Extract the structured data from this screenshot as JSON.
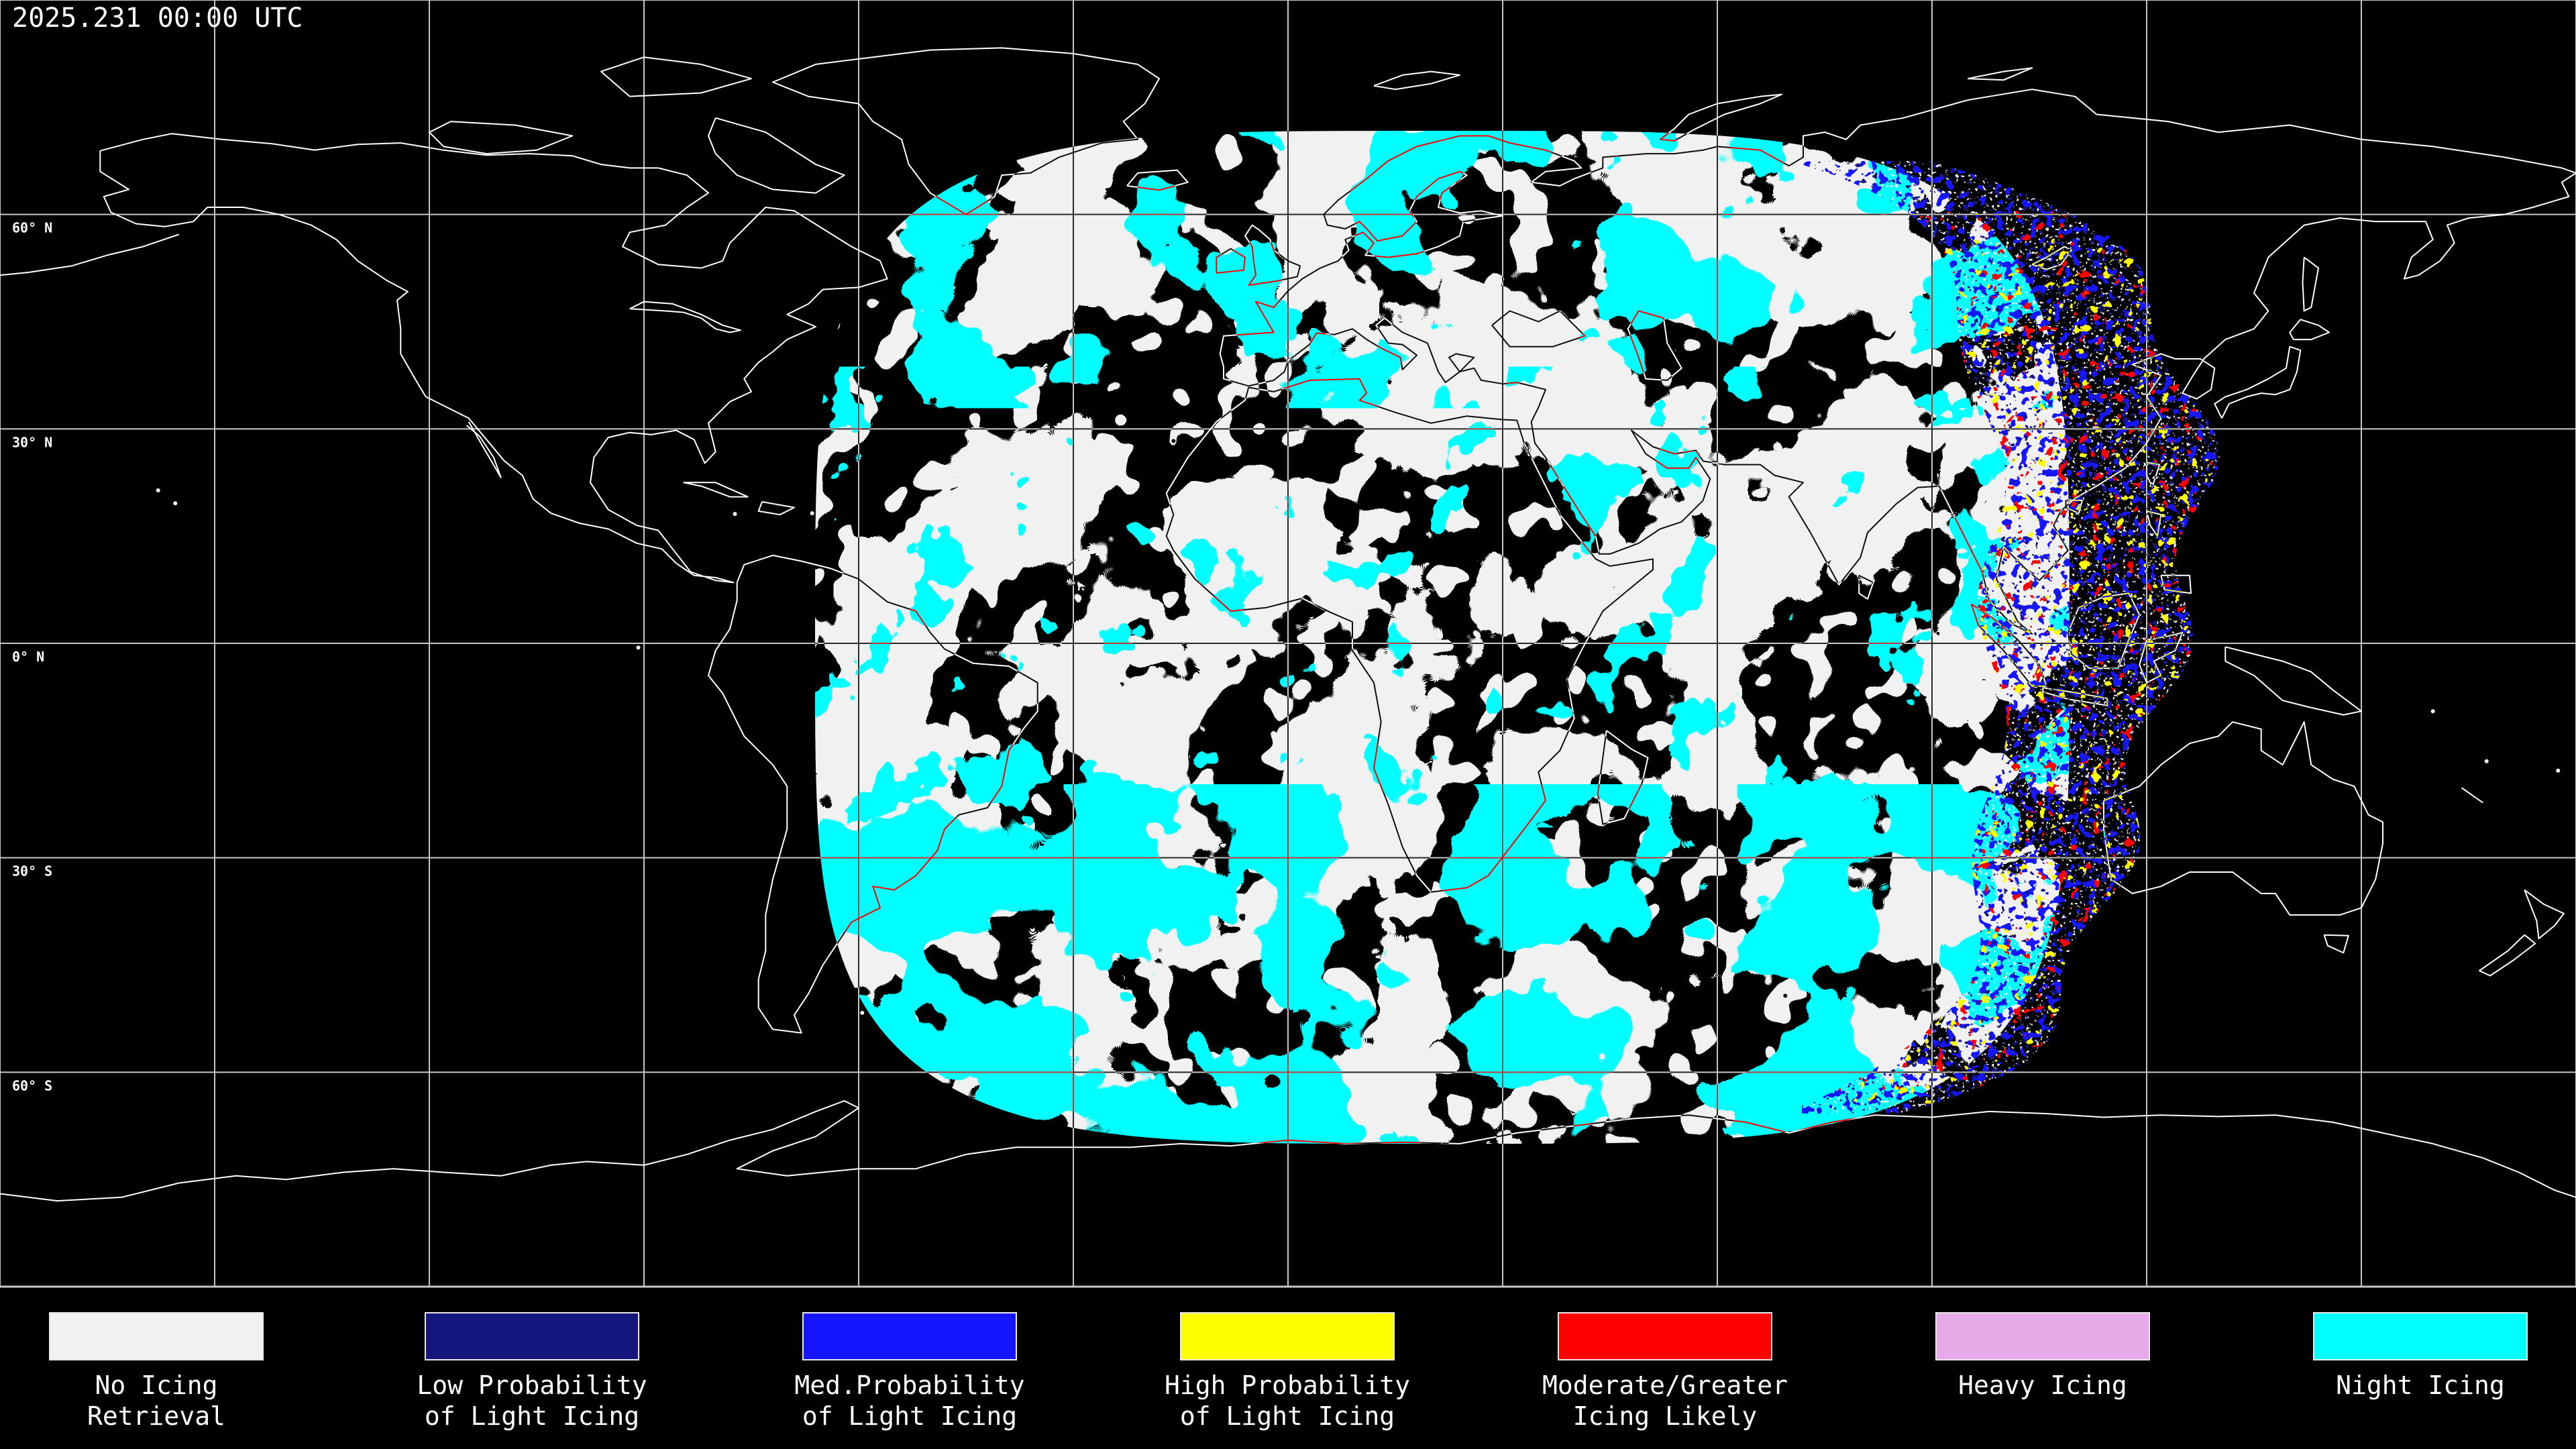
{
  "header": {
    "timestamp": "2025.231 00:00 UTC"
  },
  "map": {
    "lat_labels": [
      {
        "text": "60° N",
        "lat": 60
      },
      {
        "text": "30° N",
        "lat": 30
      },
      {
        "text": "0° N",
        "lat": 0
      },
      {
        "text": "30° S",
        "lat": -30
      },
      {
        "text": "60° S",
        "lat": -60
      }
    ],
    "grid": {
      "lon_step_deg": 30,
      "lat_step_deg": 30
    },
    "colors": {
      "background": "#000000",
      "grid_line": "#c8c8c8",
      "coastline": "#ffffff",
      "no_icing": "#f1f1f1",
      "low_prob": "#15157e",
      "med_prob": "#1414ff",
      "high_prob": "#ffff00",
      "mod_greater": "#ff0000",
      "heavy": "#e8a9e8",
      "night_icing": "#00ffff"
    }
  },
  "legend": {
    "items": [
      {
        "id": "no-icing",
        "color_key": "no_icing",
        "color": "#f1f1f1",
        "lines": [
          "No Icing",
          "Retrieval"
        ]
      },
      {
        "id": "low-prob",
        "color_key": "low_prob",
        "color": "#15157e",
        "lines": [
          "Low Probability",
          "of Light Icing"
        ]
      },
      {
        "id": "med-prob",
        "color_key": "med_prob",
        "color": "#1414ff",
        "lines": [
          "Med.Probability",
          "of Light Icing"
        ]
      },
      {
        "id": "high-prob",
        "color_key": "high_prob",
        "color": "#ffff00",
        "lines": [
          "High Probability",
          "of Light Icing"
        ]
      },
      {
        "id": "mod-greater",
        "color_key": "mod_greater",
        "color": "#ff0000",
        "lines": [
          "Moderate/Greater",
          "Icing Likely"
        ]
      },
      {
        "id": "heavy",
        "color_key": "heavy",
        "color": "#e8a9e8",
        "lines": [
          "Heavy Icing"
        ]
      },
      {
        "id": "night",
        "color_key": "night_icing",
        "color": "#00ffff",
        "lines": [
          "Night Icing"
        ]
      }
    ]
  }
}
